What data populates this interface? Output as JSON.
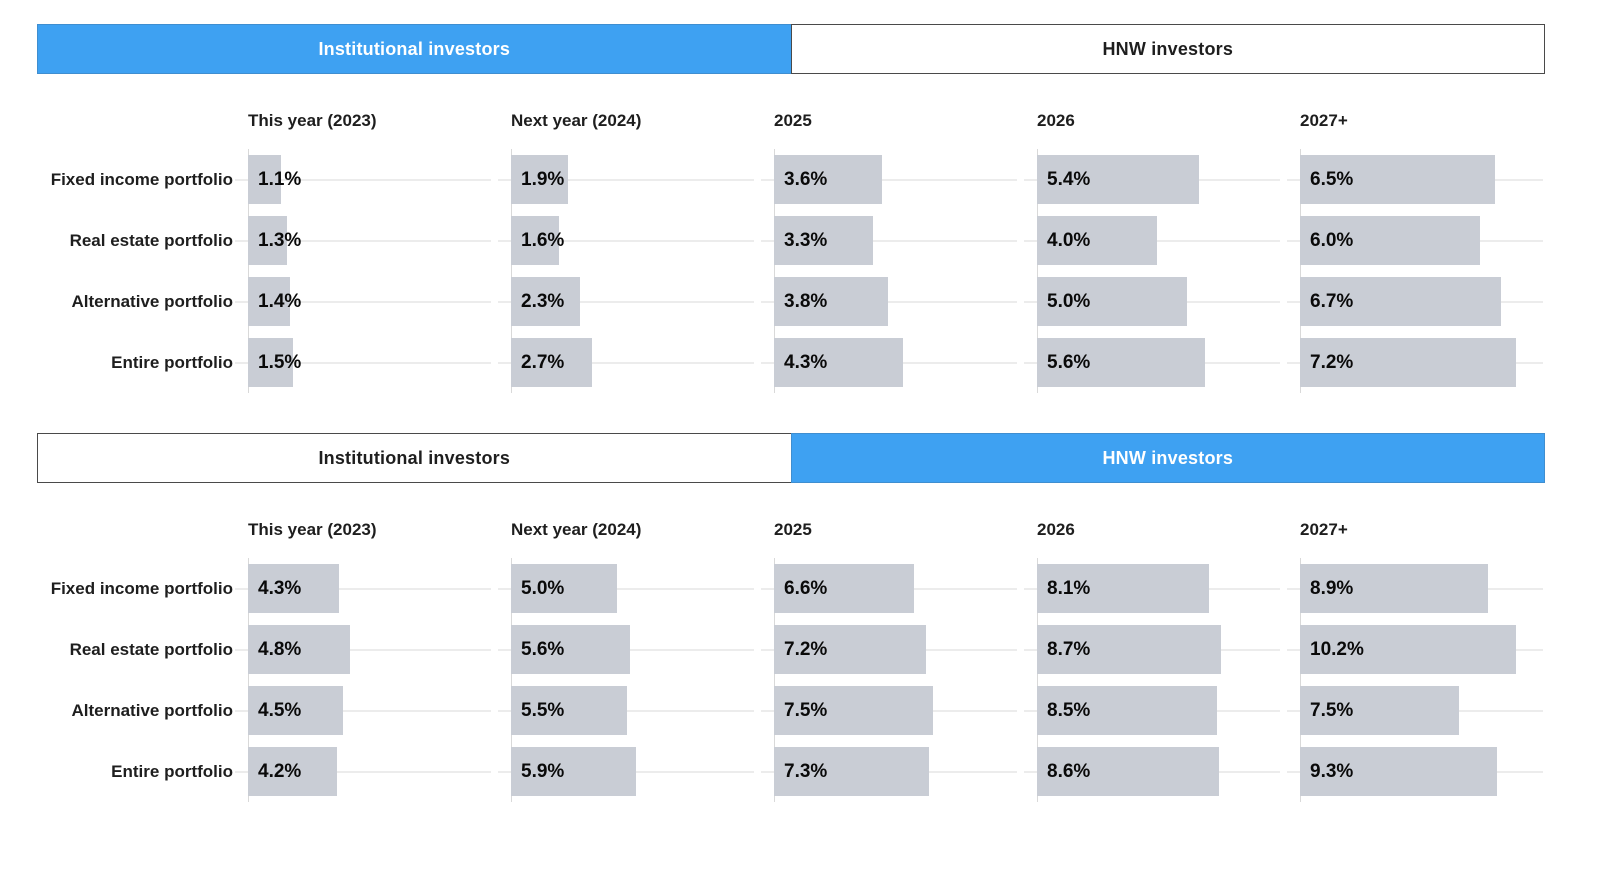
{
  "colors": {
    "accent_blue": "#3EA1F2",
    "bar_fill": "#C9CDD5",
    "text": "#1E1E1E",
    "value_text": "#0A0A0A",
    "gridline": "#ECECEC",
    "axis_line": "#D9D9D9",
    "tab_border": "#4A4A4A",
    "tab_active_text": "#FFFFFF",
    "tab_inactive_bg": "#FFFFFF"
  },
  "chart_data": [
    {
      "type": "bar",
      "orientation": "horizontal",
      "unit": "%",
      "legend": "none",
      "grid": "faint-horizontal-row-lines",
      "axis": {
        "x_min": 0,
        "x_tick_labels_visible": false
      },
      "tabs": [
        {
          "label": "Institutional investors",
          "active": true
        },
        {
          "label": "HNW investors",
          "active": false
        }
      ],
      "categories": [
        "Fixed income portfolio",
        "Real estate portfolio",
        "Alternative portfolio",
        "Entire portfolio"
      ],
      "series": [
        {
          "name": "This year (2023)",
          "values": [
            1.1,
            1.3,
            1.4,
            1.5
          ]
        },
        {
          "name": "Next year (2024)",
          "values": [
            1.9,
            1.6,
            2.3,
            2.7
          ]
        },
        {
          "name": "2025",
          "values": [
            3.6,
            3.3,
            3.8,
            4.3
          ]
        },
        {
          "name": "2026",
          "values": [
            5.4,
            4.0,
            5.0,
            5.6
          ]
        },
        {
          "name": "2027+",
          "values": [
            6.5,
            6.0,
            6.7,
            7.2
          ]
        }
      ],
      "value_labels": [
        [
          "1.1%",
          "1.9%",
          "3.6%",
          "5.4%",
          "6.5%"
        ],
        [
          "1.3%",
          "1.6%",
          "3.3%",
          "4.0%",
          "6.0%"
        ],
        [
          "1.4%",
          "2.3%",
          "3.8%",
          "5.0%",
          "6.7%"
        ],
        [
          "1.5%",
          "2.7%",
          "4.3%",
          "5.6%",
          "7.2%"
        ]
      ]
    },
    {
      "type": "bar",
      "orientation": "horizontal",
      "unit": "%",
      "legend": "none",
      "grid": "faint-horizontal-row-lines",
      "axis": {
        "x_min": 0,
        "x_tick_labels_visible": false
      },
      "tabs": [
        {
          "label": "Institutional investors",
          "active": false
        },
        {
          "label": "HNW investors",
          "active": true
        }
      ],
      "categories": [
        "Fixed income portfolio",
        "Real estate portfolio",
        "Alternative portfolio",
        "Entire portfolio"
      ],
      "series": [
        {
          "name": "This year (2023)",
          "values": [
            4.3,
            4.8,
            4.5,
            4.2
          ]
        },
        {
          "name": "Next year (2024)",
          "values": [
            5.0,
            5.6,
            5.5,
            5.9
          ]
        },
        {
          "name": "2025",
          "values": [
            6.6,
            7.2,
            7.5,
            7.3
          ]
        },
        {
          "name": "2026",
          "values": [
            8.1,
            8.7,
            8.5,
            8.6
          ]
        },
        {
          "name": "2027+",
          "values": [
            8.9,
            10.2,
            7.5,
            9.3
          ]
        }
      ],
      "value_labels": [
        [
          "4.3%",
          "5.0%",
          "6.6%",
          "8.1%",
          "8.9%"
        ],
        [
          "4.8%",
          "5.6%",
          "7.2%",
          "8.7%",
          "10.2%"
        ],
        [
          "4.5%",
          "5.5%",
          "7.5%",
          "8.5%",
          "7.5%"
        ],
        [
          "4.2%",
          "5.9%",
          "7.3%",
          "8.6%",
          "9.3%"
        ]
      ]
    }
  ]
}
